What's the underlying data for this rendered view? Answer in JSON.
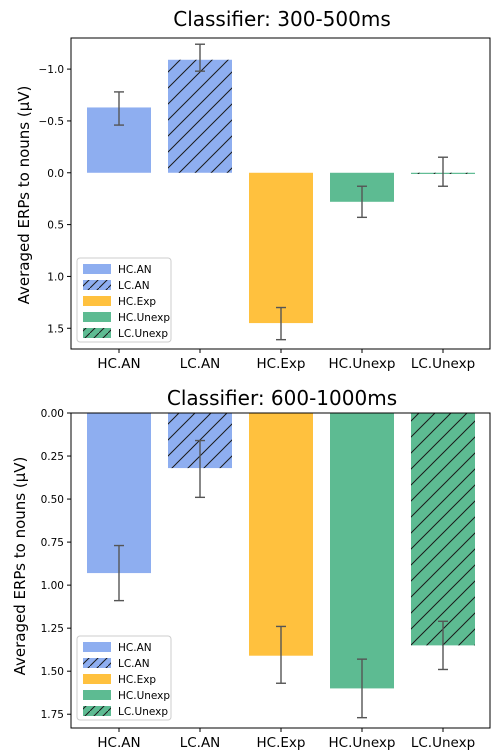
{
  "chart_data": [
    {
      "type": "bar",
      "title": "Classifier: 300-500ms",
      "xlabel": "",
      "ylabel": "Averaged ERPs to nouns (μV)",
      "y_inverted": true,
      "ylim": [
        1.7,
        -1.3
      ],
      "yticks": [
        -1.0,
        -0.5,
        0.0,
        0.5,
        1.0,
        1.5
      ],
      "ytick_labels": [
        "−1.0",
        "−0.5",
        "0.0",
        "0.5",
        "1.0",
        "1.5"
      ],
      "categories": [
        "HC.AN",
        "LC.AN",
        "HC.Exp",
        "HC.Unexp",
        "LC.Unexp"
      ],
      "series": [
        {
          "name": "HC.AN",
          "color": "#8eaef0",
          "hatch": false,
          "value": -0.63,
          "err_low": -0.46,
          "err_high": -0.78
        },
        {
          "name": "LC.AN",
          "color": "#8eaef0",
          "hatch": true,
          "value": -1.09,
          "err_low": -0.98,
          "err_high": -1.24
        },
        {
          "name": "HC.Exp",
          "color": "#ffc13e",
          "hatch": false,
          "value": 1.45,
          "err_low": 1.3,
          "err_high": 1.61
        },
        {
          "name": "HC.Unexp",
          "color": "#5dbb92",
          "hatch": false,
          "value": 0.28,
          "err_low": 0.13,
          "err_high": 0.43
        },
        {
          "name": "LC.Unexp",
          "color": "#5dbb92",
          "hatch": true,
          "value": 0.0,
          "err_low": -0.15,
          "err_high": 0.13
        }
      ],
      "legend": "lower-left",
      "grid": false
    },
    {
      "type": "bar",
      "title": "Classifier: 600-1000ms",
      "xlabel": "",
      "ylabel": "Averaged ERPs to nouns (μV)",
      "y_inverted": true,
      "ylim": [
        1.83,
        0.0
      ],
      "yticks": [
        0.0,
        0.25,
        0.5,
        0.75,
        1.0,
        1.25,
        1.5,
        1.75
      ],
      "ytick_labels": [
        "0.00",
        "0.25",
        "0.50",
        "0.75",
        "1.00",
        "1.25",
        "1.50",
        "1.75"
      ],
      "categories": [
        "HC.AN",
        "LC.AN",
        "HC.Exp",
        "HC.Unexp",
        "LC.Unexp"
      ],
      "series": [
        {
          "name": "HC.AN",
          "color": "#8eaef0",
          "hatch": false,
          "value": 0.93,
          "err_low": 0.77,
          "err_high": 1.09
        },
        {
          "name": "LC.AN",
          "color": "#8eaef0",
          "hatch": true,
          "value": 0.32,
          "err_low": 0.16,
          "err_high": 0.49
        },
        {
          "name": "HC.Exp",
          "color": "#ffc13e",
          "hatch": false,
          "value": 1.41,
          "err_low": 1.24,
          "err_high": 1.57
        },
        {
          "name": "HC.Unexp",
          "color": "#5dbb92",
          "hatch": false,
          "value": 1.6,
          "err_low": 1.43,
          "err_high": 1.77
        },
        {
          "name": "LC.Unexp",
          "color": "#5dbb92",
          "hatch": true,
          "value": 1.35,
          "err_low": 1.21,
          "err_high": 1.49
        }
      ],
      "legend": "lower-left",
      "grid": false
    }
  ]
}
